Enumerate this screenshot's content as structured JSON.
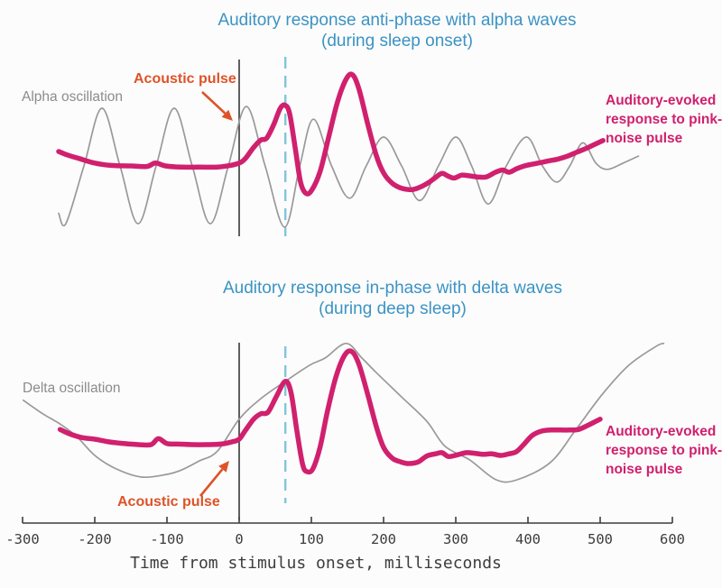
{
  "chart_data": [
    {
      "id": "alpha",
      "type": "line",
      "title": "Auditory response anti-phase with alpha waves",
      "subtitle": "(during sleep onset)",
      "x_unit": "milliseconds",
      "xlim": [
        -300,
        600
      ],
      "grid": false,
      "stimulus_time_ms": 0,
      "response_marker_ms": 64,
      "annotations": {
        "oscillation_label": "Alpha oscillation",
        "stimulus_label": "Acoustic pulse",
        "response_label": "Auditory-evoked response to pink-noise pulse"
      },
      "series": [
        {
          "name": "Alpha oscillation",
          "color": "#999999",
          "width": 1.7,
          "points": [
            [
              -250,
              -0.82
            ],
            [
              -240,
              -1
            ],
            [
              -215,
              0
            ],
            [
              -190,
              1
            ],
            [
              -165,
              0
            ],
            [
              -140,
              -1
            ],
            [
              -115,
              0
            ],
            [
              -90,
              1
            ],
            [
              -65,
              0
            ],
            [
              -40,
              -1
            ],
            [
              -15,
              0
            ],
            [
              10,
              1.03
            ],
            [
              36,
              0
            ],
            [
              63,
              -1.06
            ],
            [
              84,
              0
            ],
            [
              103,
              0.81
            ],
            [
              128,
              0
            ],
            [
              153,
              -0.56
            ],
            [
              176,
              0
            ],
            [
              200,
              0.5
            ],
            [
              225,
              0
            ],
            [
              250,
              -0.6
            ],
            [
              276,
              0
            ],
            [
              300,
              0.5
            ],
            [
              322,
              0
            ],
            [
              345,
              -0.66
            ],
            [
              370,
              0
            ],
            [
              398,
              0.5
            ],
            [
              420,
              0
            ],
            [
              440,
              -0.28
            ],
            [
              458,
              0
            ],
            [
              476,
              0.4
            ],
            [
              494,
              0.05
            ],
            [
              510,
              -0.06
            ],
            [
              532,
              0.05
            ],
            [
              553,
              0.17
            ]
          ]
        },
        {
          "name": "Auditory-evoked response to pink-noise pulse",
          "color": "#d0206e",
          "width": 5.5,
          "points": [
            [
              -250,
              0.25
            ],
            [
              -238,
              0.19
            ],
            [
              -222,
              0.13
            ],
            [
              -200,
              0.05
            ],
            [
              -178,
              0.01
            ],
            [
              -150,
              0
            ],
            [
              -128,
              -0.01
            ],
            [
              -116,
              0.05
            ],
            [
              -102,
              0
            ],
            [
              -80,
              -0.02
            ],
            [
              -55,
              -0.02
            ],
            [
              -30,
              -0.02
            ],
            [
              -12,
              0.01
            ],
            [
              0,
              0.05
            ],
            [
              8,
              0.12
            ],
            [
              20,
              0.32
            ],
            [
              30,
              0.45
            ],
            [
              38,
              0.48
            ],
            [
              48,
              0.72
            ],
            [
              57,
              1
            ],
            [
              64,
              1.05
            ],
            [
              70,
              0.9
            ],
            [
              78,
              0.28
            ],
            [
              85,
              -0.28
            ],
            [
              92,
              -0.47
            ],
            [
              100,
              -0.43
            ],
            [
              112,
              -0.1
            ],
            [
              124,
              0.5
            ],
            [
              136,
              1.1
            ],
            [
              148,
              1.5
            ],
            [
              157,
              1.58
            ],
            [
              166,
              1.33
            ],
            [
              178,
              0.73
            ],
            [
              190,
              0.18
            ],
            [
              200,
              -0.12
            ],
            [
              212,
              -0.3
            ],
            [
              226,
              -0.39
            ],
            [
              240,
              -0.41
            ],
            [
              252,
              -0.36
            ],
            [
              262,
              -0.29
            ],
            [
              272,
              -0.2
            ],
            [
              281,
              -0.13
            ],
            [
              290,
              -0.18
            ],
            [
              298,
              -0.21
            ],
            [
              308,
              -0.16
            ],
            [
              318,
              -0.17
            ],
            [
              330,
              -0.19
            ],
            [
              342,
              -0.19
            ],
            [
              355,
              -0.11
            ],
            [
              365,
              -0.07
            ],
            [
              374,
              -0.11
            ],
            [
              384,
              -0.05
            ],
            [
              395,
              0
            ],
            [
              406,
              0.03
            ],
            [
              418,
              0.06
            ],
            [
              430,
              0.09
            ],
            [
              442,
              0.12
            ],
            [
              455,
              0.17
            ],
            [
              468,
              0.24
            ],
            [
              480,
              0.3
            ],
            [
              490,
              0.36
            ],
            [
              504,
              0.44
            ]
          ]
        }
      ]
    },
    {
      "id": "delta",
      "type": "line",
      "title": "Auditory response in-phase with delta waves",
      "subtitle": "(during deep sleep)",
      "x_unit": "milliseconds",
      "xlim": [
        -300,
        600
      ],
      "grid": false,
      "stimulus_time_ms": 0,
      "response_marker_ms": 64,
      "annotations": {
        "oscillation_label": "Delta oscillation",
        "stimulus_label": "Acoustic pulse",
        "response_label": "Auditory-evoked response to pink-noise pulse"
      },
      "series": [
        {
          "name": "Delta oscillation",
          "color": "#999999",
          "width": 1.7,
          "points": [
            [
              -299,
              0.77
            ],
            [
              -272,
              0.52
            ],
            [
              -248,
              0.33
            ],
            [
              -225,
              0.1
            ],
            [
              -200,
              -0.25
            ],
            [
              -170,
              -0.5
            ],
            [
              -135,
              -0.65
            ],
            [
              -100,
              -0.6
            ],
            [
              -80,
              -0.52
            ],
            [
              -55,
              -0.35
            ],
            [
              -30,
              -0.17
            ],
            [
              0,
              0.42
            ],
            [
              30,
              0.8
            ],
            [
              64,
              1.12
            ],
            [
              98,
              1.42
            ],
            [
              119,
              1.55
            ],
            [
              148,
              1.82
            ],
            [
              170,
              1.55
            ],
            [
              190,
              1.28
            ],
            [
              225,
              0.83
            ],
            [
              260,
              0.38
            ],
            [
              285,
              -0.08
            ],
            [
              319,
              -0.33
            ],
            [
              356,
              -0.7
            ],
            [
              385,
              -0.7
            ],
            [
              431,
              -0.38
            ],
            [
              466,
              0.22
            ],
            [
              503,
              0.88
            ],
            [
              540,
              1.42
            ],
            [
              578,
              1.77
            ],
            [
              588,
              1.82
            ]
          ]
        },
        {
          "name": "Auditory-evoked response to pink-noise pulse",
          "color": "#d0206e",
          "width": 5.5,
          "points": [
            [
              -248,
              0.23
            ],
            [
              -235,
              0.15
            ],
            [
              -218,
              0.08
            ],
            [
              -200,
              0.05
            ],
            [
              -180,
              0
            ],
            [
              -160,
              -0.03
            ],
            [
              -140,
              -0.05
            ],
            [
              -122,
              -0.05
            ],
            [
              -112,
              0.06
            ],
            [
              -100,
              -0.03
            ],
            [
              -85,
              -0.04
            ],
            [
              -65,
              -0.05
            ],
            [
              -45,
              -0.05
            ],
            [
              -25,
              -0.04
            ],
            [
              -10,
              0
            ],
            [
              0,
              0.05
            ],
            [
              8,
              0.2
            ],
            [
              20,
              0.42
            ],
            [
              30,
              0.52
            ],
            [
              40,
              0.55
            ],
            [
              52,
              0.85
            ],
            [
              64,
              1.12
            ],
            [
              72,
              0.9
            ],
            [
              80,
              0.2
            ],
            [
              88,
              -0.42
            ],
            [
              94,
              -0.55
            ],
            [
              102,
              -0.5
            ],
            [
              112,
              -0.1
            ],
            [
              122,
              0.55
            ],
            [
              134,
              1.2
            ],
            [
              146,
              1.6
            ],
            [
              156,
              1.67
            ],
            [
              166,
              1.43
            ],
            [
              178,
              0.88
            ],
            [
              190,
              0.28
            ],
            [
              200,
              -0.1
            ],
            [
              212,
              -0.3
            ],
            [
              224,
              -0.37
            ],
            [
              235,
              -0.4
            ],
            [
              248,
              -0.37
            ],
            [
              260,
              -0.26
            ],
            [
              272,
              -0.22
            ],
            [
              281,
              -0.2
            ],
            [
              290,
              -0.27
            ],
            [
              302,
              -0.24
            ],
            [
              314,
              -0.2
            ],
            [
              326,
              -0.21
            ],
            [
              338,
              -0.23
            ],
            [
              350,
              -0.22
            ],
            [
              362,
              -0.25
            ],
            [
              374,
              -0.22
            ],
            [
              384,
              -0.18
            ],
            [
              394,
              -0.05
            ],
            [
              406,
              0.12
            ],
            [
              419,
              0.2
            ],
            [
              432,
              0.22
            ],
            [
              445,
              0.22
            ],
            [
              458,
              0.22
            ],
            [
              470,
              0.23
            ],
            [
              482,
              0.3
            ],
            [
              494,
              0.38
            ],
            [
              500,
              0.42
            ]
          ]
        }
      ]
    }
  ],
  "axis": {
    "ticks": [
      -300,
      -200,
      -100,
      0,
      100,
      200,
      300,
      400,
      500,
      600
    ],
    "label": "Time from stimulus onset, milliseconds"
  },
  "colors": {
    "background": "#fcfcfc",
    "title": "#3b93c4",
    "stimulus_label": "#dd5329",
    "oscillation_label": "#8c8c8c",
    "response_label": "#d0206e",
    "stimulus_line": "#2b2b2b",
    "marker_dash": "#82c5da",
    "axis": "#3d3d3d"
  }
}
